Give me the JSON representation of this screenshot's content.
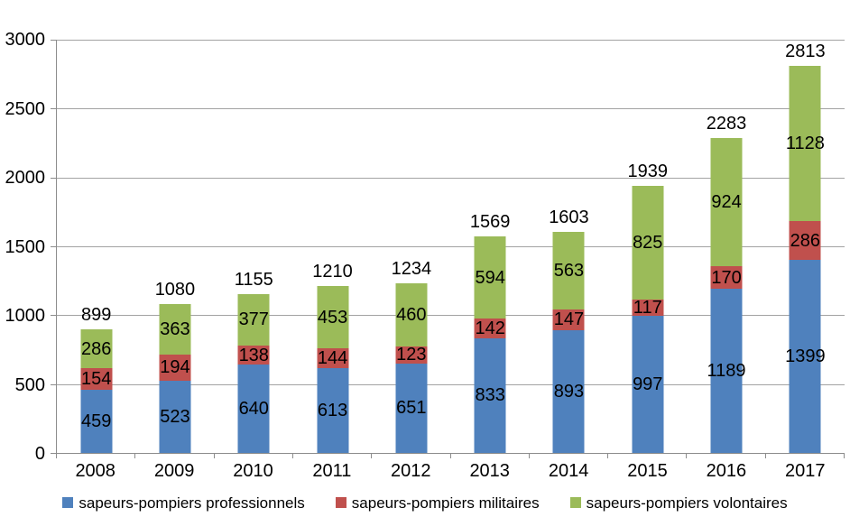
{
  "chart_data": {
    "type": "bar",
    "stacked": true,
    "title": "",
    "xlabel": "",
    "ylabel": "",
    "categories": [
      "2008",
      "2009",
      "2010",
      "2011",
      "2012",
      "2013",
      "2014",
      "2015",
      "2016",
      "2017"
    ],
    "series": [
      {
        "name": "sapeurs-pompiers professionnels",
        "color": "#4F81BD",
        "values": [
          459,
          523,
          640,
          613,
          651,
          833,
          893,
          997,
          1189,
          1399
        ]
      },
      {
        "name": "sapeurs-pompiers militaires",
        "color": "#C0504D",
        "values": [
          154,
          194,
          138,
          144,
          123,
          142,
          147,
          117,
          170,
          286
        ]
      },
      {
        "name": "sapeurs-pompiers volontaires",
        "color": "#9BBB59",
        "values": [
          286,
          363,
          377,
          453,
          460,
          594,
          563,
          825,
          924,
          1128
        ]
      }
    ],
    "totals": [
      899,
      1080,
      1155,
      1210,
      1234,
      1569,
      1603,
      1939,
      2283,
      2813
    ],
    "y_ticks": [
      0,
      500,
      1000,
      1500,
      2000,
      2500,
      3000
    ],
    "ylim": [
      0,
      3000
    ],
    "grid": "horizontal",
    "legend_position": "bottom"
  },
  "style": {
    "gridline_color": "#a3a3a3",
    "axis_color": "#8c8c8c",
    "text_color": "#000000",
    "background": "#ffffff"
  }
}
